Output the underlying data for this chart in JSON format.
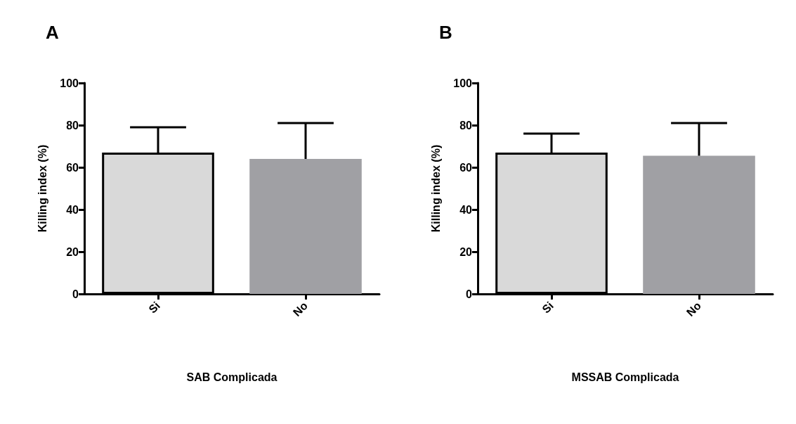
{
  "chart_data": [
    {
      "type": "bar",
      "title": "A",
      "xlabel": "SAB Complicada",
      "ylabel": "Killing index (%)",
      "categories": [
        "Si",
        "No"
      ],
      "values": [
        67,
        64
      ],
      "colors": [
        "#d9d9d9",
        "#a0a0a4"
      ],
      "errors": [
        [
          67,
          79
        ],
        [
          64,
          81
        ]
      ],
      "ylim": [
        0,
        100
      ],
      "yticks": [
        0,
        20,
        40,
        60,
        80,
        100
      ],
      "grid": false
    },
    {
      "type": "bar",
      "title": "B",
      "xlabel": "MSSAB Complicada",
      "ylabel": "Killing index (%)",
      "categories": [
        "Si",
        "No"
      ],
      "values": [
        67,
        65.5
      ],
      "colors": [
        "#d9d9d9",
        "#a0a0a4"
      ],
      "errors": [
        [
          67,
          76
        ],
        [
          65.5,
          81
        ]
      ],
      "ylim": [
        0,
        100
      ],
      "yticks": [
        0,
        20,
        40,
        60,
        80,
        100
      ],
      "grid": false
    }
  ]
}
